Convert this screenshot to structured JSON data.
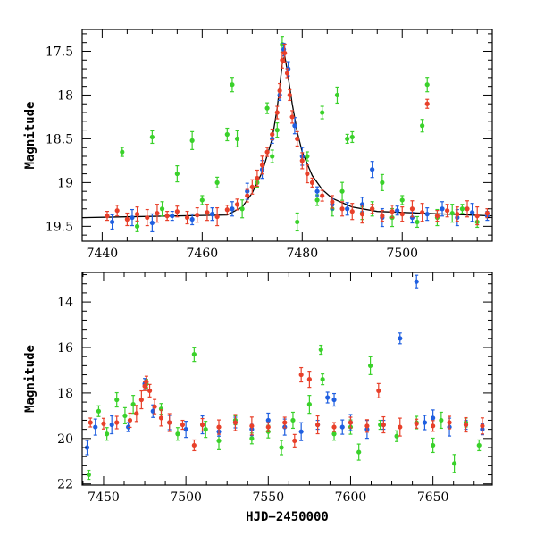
{
  "chart_data": [
    {
      "type": "scatter",
      "panel": "top",
      "title": "",
      "xlabel": "",
      "ylabel": "Magnitude",
      "xlim": [
        7436,
        7518
      ],
      "ylim": [
        19.67,
        17.25
      ],
      "y_inverted": true,
      "xticks": [
        7440,
        7460,
        7480,
        7500
      ],
      "yticks": [
        17.5,
        18,
        18.5,
        19,
        19.5
      ],
      "grid": false,
      "series": [
        {
          "color": "#e8402a",
          "points": [
            [
              7441,
              19.38
            ],
            [
              7443,
              19.32
            ],
            [
              7445,
              19.42
            ],
            [
              7447,
              19.36
            ],
            [
              7449,
              19.4
            ],
            [
              7451,
              19.35
            ],
            [
              7453,
              19.38
            ],
            [
              7455,
              19.33
            ],
            [
              7457,
              19.4
            ],
            [
              7459,
              19.37
            ],
            [
              7461,
              19.34
            ],
            [
              7463,
              19.39
            ],
            [
              7465,
              19.31
            ],
            [
              7467,
              19.25
            ],
            [
              7469,
              19.15
            ],
            [
              7470,
              19.05
            ],
            [
              7471,
              18.95
            ],
            [
              7472,
              18.8
            ],
            [
              7473,
              18.65
            ],
            [
              7474,
              18.45
            ],
            [
              7475,
              18.2
            ],
            [
              7475.5,
              17.95
            ],
            [
              7476,
              17.6
            ],
            [
              7476.5,
              17.52
            ],
            [
              7477,
              17.75
            ],
            [
              7477.5,
              18.0
            ],
            [
              7478,
              18.25
            ],
            [
              7479,
              18.5
            ],
            [
              7480,
              18.75
            ],
            [
              7481,
              18.9
            ],
            [
              7482,
              19.0
            ],
            [
              7484,
              19.15
            ],
            [
              7486,
              19.22
            ],
            [
              7488,
              19.3
            ],
            [
              7490,
              19.33
            ],
            [
              7492,
              19.36
            ],
            [
              7494,
              19.3
            ],
            [
              7496,
              19.38
            ],
            [
              7498,
              19.33
            ],
            [
              7500,
              19.36
            ],
            [
              7502,
              19.3
            ],
            [
              7504,
              19.34
            ],
            [
              7505,
              18.1
            ],
            [
              7507,
              19.38
            ],
            [
              7509,
              19.32
            ],
            [
              7511,
              19.36
            ],
            [
              7513,
              19.3
            ],
            [
              7515,
              19.38
            ],
            [
              7517,
              19.35
            ]
          ]
        },
        {
          "color": "#1f5fe0",
          "points": [
            [
              7442,
              19.45
            ],
            [
              7446,
              19.4
            ],
            [
              7450,
              19.46
            ],
            [
              7454,
              19.38
            ],
            [
              7458,
              19.42
            ],
            [
              7462,
              19.36
            ],
            [
              7466,
              19.3
            ],
            [
              7469,
              19.1
            ],
            [
              7472,
              18.85
            ],
            [
              7474,
              18.5
            ],
            [
              7475.5,
              18.0
            ],
            [
              7476.3,
              17.48
            ],
            [
              7477.2,
              17.7
            ],
            [
              7478.5,
              18.35
            ],
            [
              7480,
              18.7
            ],
            [
              7483,
              19.1
            ],
            [
              7486,
              19.25
            ],
            [
              7489,
              19.3
            ],
            [
              7492,
              19.25
            ],
            [
              7494,
              18.85
            ],
            [
              7496,
              19.4
            ],
            [
              7499,
              19.32
            ],
            [
              7502,
              19.4
            ],
            [
              7505,
              19.36
            ],
            [
              7508,
              19.3
            ],
            [
              7511,
              19.4
            ],
            [
              7514,
              19.34
            ],
            [
              7517,
              19.38
            ]
          ]
        },
        {
          "color": "#3ad12a",
          "points": [
            [
              7444,
              18.65
            ],
            [
              7447,
              19.5
            ],
            [
              7450,
              18.48
            ],
            [
              7452,
              19.3
            ],
            [
              7455,
              18.9
            ],
            [
              7458,
              18.52
            ],
            [
              7460,
              19.2
            ],
            [
              7463,
              19.0
            ],
            [
              7465,
              18.45
            ],
            [
              7466,
              17.88
            ],
            [
              7467,
              18.5
            ],
            [
              7468,
              19.3
            ],
            [
              7471,
              19.0
            ],
            [
              7473,
              18.15
            ],
            [
              7474,
              18.7
            ],
            [
              7475,
              18.4
            ],
            [
              7476,
              17.42
            ],
            [
              7479,
              19.45
            ],
            [
              7481,
              18.7
            ],
            [
              7483,
              19.2
            ],
            [
              7484,
              18.2
            ],
            [
              7486,
              19.3
            ],
            [
              7487,
              18.0
            ],
            [
              7488,
              19.1
            ],
            [
              7489,
              18.5
            ],
            [
              7490,
              18.48
            ],
            [
              7492,
              19.35
            ],
            [
              7494,
              19.3
            ],
            [
              7496,
              19.0
            ],
            [
              7498,
              19.4
            ],
            [
              7500,
              19.2
            ],
            [
              7503,
              19.45
            ],
            [
              7504,
              18.35
            ],
            [
              7505,
              17.88
            ],
            [
              7507,
              19.4
            ],
            [
              7510,
              19.35
            ],
            [
              7512,
              19.3
            ],
            [
              7515,
              19.45
            ]
          ]
        }
      ],
      "model_curve": [
        [
          7436,
          19.4
        ],
        [
          7465,
          19.37
        ],
        [
          7468,
          19.28
        ],
        [
          7470,
          19.12
        ],
        [
          7472,
          18.88
        ],
        [
          7474,
          18.5
        ],
        [
          7475,
          18.15
        ],
        [
          7476,
          17.65
        ],
        [
          7476.5,
          17.55
        ],
        [
          7477,
          17.72
        ],
        [
          7478,
          18.1
        ],
        [
          7479,
          18.42
        ],
        [
          7480,
          18.65
        ],
        [
          7482,
          18.92
        ],
        [
          7484,
          19.08
        ],
        [
          7486,
          19.18
        ],
        [
          7490,
          19.28
        ],
        [
          7495,
          19.33
        ],
        [
          7518,
          19.38
        ]
      ]
    },
    {
      "type": "scatter",
      "panel": "bottom",
      "title": "",
      "xlabel": "HJD−2450000",
      "ylabel": "Magnitude",
      "xlim": [
        7437,
        7686
      ],
      "ylim": [
        22.05,
        12.7
      ],
      "y_inverted": true,
      "xticks": [
        7450,
        7500,
        7550,
        7600,
        7650
      ],
      "yticks": [
        14,
        16,
        18,
        20,
        22
      ],
      "grid": false,
      "series": [
        {
          "color": "#e8402a",
          "points": [
            [
              7442,
              19.3
            ],
            [
              7450,
              19.35
            ],
            [
              7458,
              19.3
            ],
            [
              7466,
              19.2
            ],
            [
              7470,
              18.9
            ],
            [
              7473,
              18.3
            ],
            [
              7475,
              17.7
            ],
            [
              7476,
              17.5
            ],
            [
              7478,
              17.9
            ],
            [
              7481,
              18.6
            ],
            [
              7485,
              19.1
            ],
            [
              7490,
              19.3
            ],
            [
              7498,
              19.4
            ],
            [
              7505,
              20.3
            ],
            [
              7510,
              19.4
            ],
            [
              7520,
              19.5
            ],
            [
              7530,
              19.3
            ],
            [
              7540,
              19.45
            ],
            [
              7550,
              19.5
            ],
            [
              7560,
              19.3
            ],
            [
              7566,
              20.1
            ],
            [
              7570,
              17.2
            ],
            [
              7575,
              17.4
            ],
            [
              7580,
              19.4
            ],
            [
              7590,
              19.5
            ],
            [
              7600,
              19.3
            ],
            [
              7610,
              19.45
            ],
            [
              7617,
              17.9
            ],
            [
              7620,
              19.4
            ],
            [
              7630,
              19.5
            ],
            [
              7640,
              19.35
            ],
            [
              7650,
              19.45
            ],
            [
              7660,
              19.3
            ],
            [
              7670,
              19.4
            ],
            [
              7680,
              19.45
            ]
          ]
        },
        {
          "color": "#1f5fe0",
          "points": [
            [
              7440,
              20.4
            ],
            [
              7445,
              19.5
            ],
            [
              7455,
              19.4
            ],
            [
              7465,
              19.5
            ],
            [
              7475,
              17.6
            ],
            [
              7480,
              18.8
            ],
            [
              7490,
              19.3
            ],
            [
              7500,
              19.6
            ],
            [
              7510,
              19.4
            ],
            [
              7520,
              19.7
            ],
            [
              7530,
              19.3
            ],
            [
              7540,
              19.6
            ],
            [
              7550,
              19.2
            ],
            [
              7560,
              19.5
            ],
            [
              7570,
              19.7
            ],
            [
              7580,
              19.4
            ],
            [
              7586,
              18.2
            ],
            [
              7590,
              18.3
            ],
            [
              7595,
              19.5
            ],
            [
              7600,
              19.3
            ],
            [
              7610,
              19.6
            ],
            [
              7620,
              19.4
            ],
            [
              7630,
              15.6
            ],
            [
              7640,
              13.1
            ],
            [
              7645,
              19.3
            ],
            [
              7650,
              19.1
            ],
            [
              7660,
              19.5
            ],
            [
              7670,
              19.4
            ],
            [
              7680,
              19.6
            ]
          ]
        },
        {
          "color": "#3ad12a",
          "points": [
            [
              7441,
              21.6
            ],
            [
              7447,
              18.8
            ],
            [
              7452,
              19.8
            ],
            [
              7458,
              18.3
            ],
            [
              7463,
              19.0
            ],
            [
              7468,
              18.5
            ],
            [
              7476,
              17.6
            ],
            [
              7485,
              18.7
            ],
            [
              7495,
              19.8
            ],
            [
              7505,
              16.3
            ],
            [
              7512,
              19.6
            ],
            [
              7520,
              20.1
            ],
            [
              7530,
              19.2
            ],
            [
              7540,
              20.0
            ],
            [
              7550,
              19.7
            ],
            [
              7558,
              20.4
            ],
            [
              7565,
              19.2
            ],
            [
              7575,
              18.5
            ],
            [
              7582,
              16.1
            ],
            [
              7583,
              17.4
            ],
            [
              7590,
              19.8
            ],
            [
              7600,
              19.5
            ],
            [
              7605,
              20.6
            ],
            [
              7612,
              16.8
            ],
            [
              7618,
              19.4
            ],
            [
              7628,
              19.9
            ],
            [
              7640,
              19.3
            ],
            [
              7650,
              20.3
            ],
            [
              7655,
              19.2
            ],
            [
              7663,
              21.1
            ],
            [
              7670,
              19.3
            ],
            [
              7678,
              20.3
            ]
          ]
        }
      ]
    }
  ]
}
